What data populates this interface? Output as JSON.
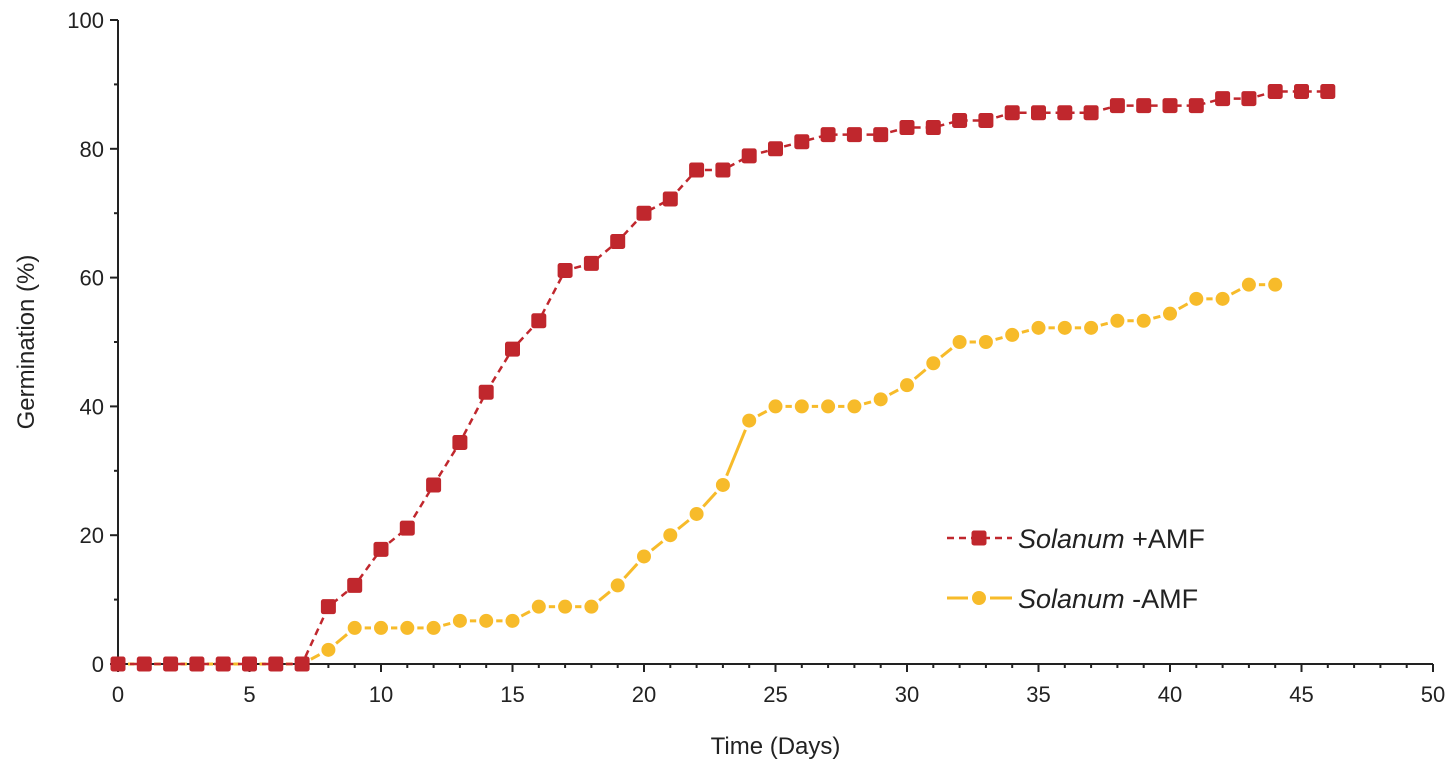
{
  "chart_data": {
    "type": "line",
    "title": "",
    "xlabel": "Time (Days)",
    "ylabel": "Germination (%)",
    "xlim": [
      0,
      50
    ],
    "ylim": [
      0,
      100
    ],
    "xticks": [
      0,
      5,
      10,
      15,
      20,
      25,
      30,
      35,
      40,
      45,
      50
    ],
    "yticks": [
      0,
      20,
      40,
      60,
      80,
      100
    ],
    "grid": false,
    "legend_position": "lower-right",
    "series": [
      {
        "name_italic": "Solanum",
        "name_suffix": " +AMF",
        "marker": "square",
        "line_style": "dashed",
        "color": "#c0272d",
        "x": [
          0,
          1,
          2,
          3,
          4,
          5,
          6,
          7,
          8,
          9,
          10,
          11,
          12,
          13,
          14,
          15,
          16,
          17,
          18,
          19,
          20,
          21,
          22,
          23,
          24,
          25,
          26,
          27,
          28,
          29,
          30,
          31,
          32,
          33,
          34,
          35,
          36,
          37,
          38,
          39,
          40,
          41,
          42,
          43,
          44,
          45,
          46
        ],
        "values": [
          0,
          0,
          0,
          0,
          0,
          0,
          0,
          0,
          8.9,
          12.2,
          17.8,
          21.1,
          27.8,
          34.4,
          42.2,
          48.9,
          53.3,
          61.1,
          62.2,
          65.6,
          70,
          72.2,
          76.7,
          76.7,
          78.9,
          80,
          81.1,
          82.2,
          82.2,
          82.2,
          83.3,
          83.3,
          84.4,
          84.4,
          85.6,
          85.6,
          85.6,
          85.6,
          86.7,
          86.7,
          86.7,
          86.7,
          87.8,
          87.8,
          88.9,
          88.9,
          88.9
        ]
      },
      {
        "name_italic": "Solanum",
        "name_suffix": " -AMF",
        "marker": "circle",
        "line_style": "solid-segmented",
        "color": "#f7bb2a",
        "x": [
          0,
          1,
          2,
          3,
          4,
          5,
          6,
          7,
          8,
          9,
          10,
          11,
          12,
          13,
          14,
          15,
          16,
          17,
          18,
          19,
          20,
          21,
          22,
          23,
          24,
          25,
          26,
          27,
          28,
          29,
          30,
          31,
          32,
          33,
          34,
          35,
          36,
          37,
          38,
          39,
          40,
          41,
          42,
          43,
          44
        ],
        "values": [
          0,
          0,
          0,
          0,
          0,
          0,
          0,
          0,
          2.2,
          5.6,
          5.6,
          5.6,
          5.6,
          6.7,
          6.7,
          6.7,
          8.9,
          8.9,
          8.9,
          12.2,
          16.7,
          20,
          23.3,
          27.8,
          37.8,
          40,
          40,
          40,
          40,
          41.1,
          43.3,
          46.7,
          50,
          50,
          51.1,
          52.2,
          52.2,
          52.2,
          53.3,
          53.3,
          54.4,
          56.7,
          56.7,
          58.9,
          58.9
        ]
      }
    ]
  }
}
